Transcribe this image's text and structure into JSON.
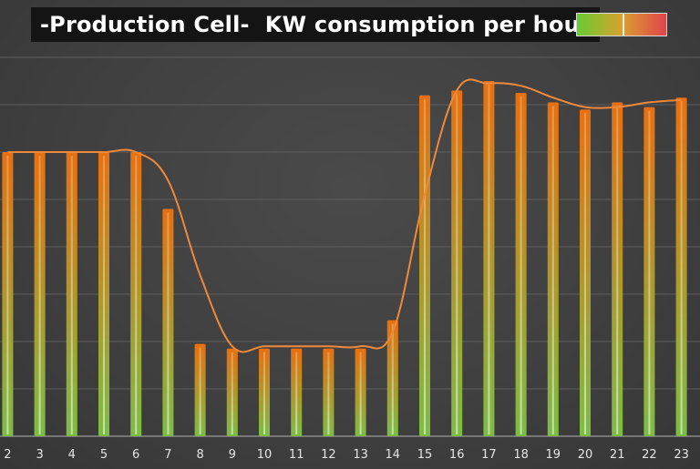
{
  "title": "-Production Cell-  KW consumption per hour",
  "colors": {
    "background": "#404040",
    "gridline": "#5e5e5e",
    "bar_top": "#e8700f",
    "bar_bottom": "#7dbd45",
    "line": "#ef8a3c",
    "tick_label": "#e6e6e6"
  },
  "legend": {
    "gradient_start": "#66cc33",
    "gradient_end": "#e0444a"
  },
  "chart_data": {
    "type": "bar",
    "categories": [
      "2",
      "3",
      "4",
      "5",
      "6",
      "7",
      "8",
      "9",
      "10",
      "11",
      "12",
      "13",
      "14",
      "15",
      "16",
      "17",
      "18",
      "19",
      "20",
      "21",
      "22",
      "23"
    ],
    "series": [
      {
        "values": [
          6.0,
          6.0,
          6.0,
          6.0,
          6.0,
          4.8,
          1.95,
          1.85,
          1.85,
          1.85,
          1.85,
          1.85,
          2.45,
          7.2,
          7.3,
          7.5,
          7.25,
          7.05,
          6.9,
          7.05,
          6.95,
          7.15
        ]
      },
      {
        "values": [
          6.0,
          6.0,
          6.0,
          6.0,
          6.0,
          5.4,
          3.4,
          1.9,
          1.9,
          1.9,
          1.9,
          1.9,
          2.2,
          5.1,
          7.3,
          7.45,
          7.4,
          7.15,
          6.95,
          6.95,
          7.05,
          7.1
        ]
      }
    ],
    "ylim": [
      0,
      8
    ],
    "grid": true,
    "legend_position": "top-right"
  }
}
